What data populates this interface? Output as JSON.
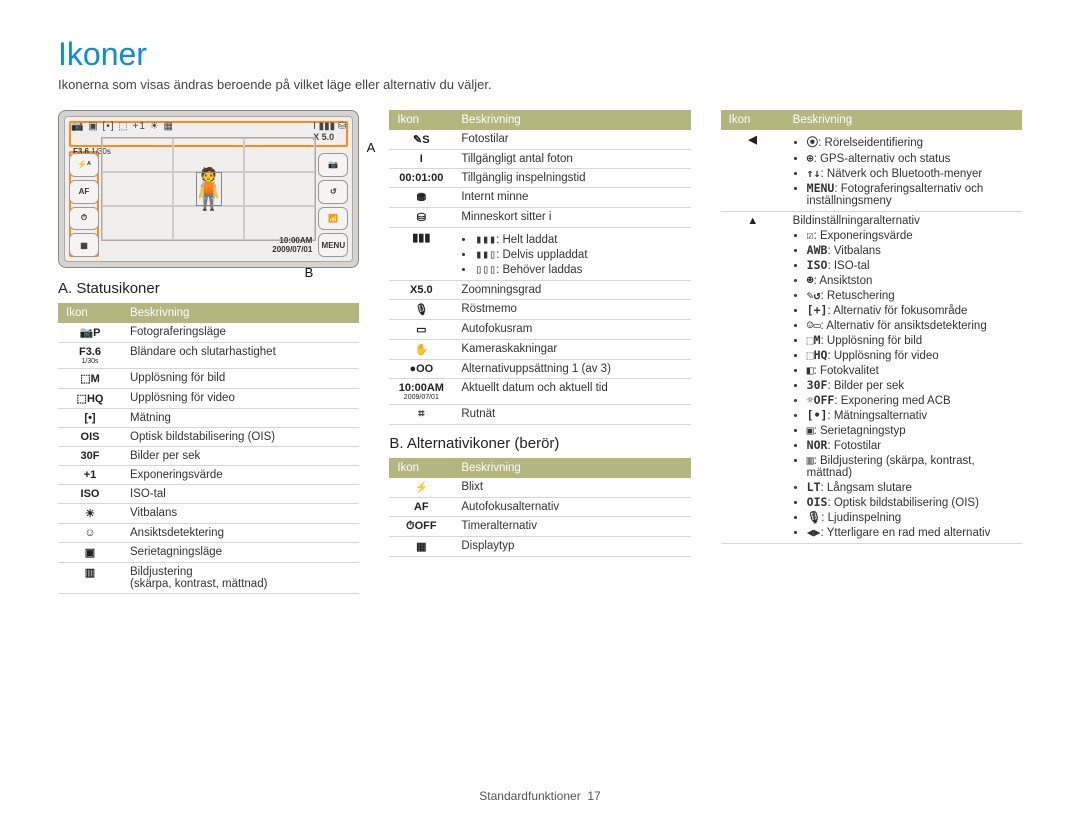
{
  "theme": {
    "accent": "#0b8ed2",
    "table_header_bg": "#b3b77f",
    "table_header_fg": "#ffffff",
    "callout": "#ff8c1a"
  },
  "title": "Ikoner",
  "intro": "Ikonerna som visas ändras beroende på vilket läge eller alternativ du väljer.",
  "preview": {
    "aperture": "F3.6",
    "shutter": "1/30s",
    "zoom": "X 5.0",
    "time": "10:00AM",
    "date": "2009/07/01",
    "label_a": "A",
    "label_b": "B",
    "left_buttons": [
      "⚡ᴬ",
      "AF",
      "⏱",
      "▦"
    ],
    "right_buttons": [
      "📷",
      "↺",
      "📶",
      "MENU"
    ]
  },
  "header": {
    "icon": "Ikon",
    "desc": "Beskrivning"
  },
  "section_a": {
    "title": "A. Statusikoner",
    "rows": [
      {
        "icon": "📷P",
        "desc": "Fotograferingsläge"
      },
      {
        "icon": "F3.6 1/30s",
        "desc": "Bländare och slutarhastighet"
      },
      {
        "icon": "⬚M",
        "desc": "Upplösning för bild"
      },
      {
        "icon": "⬚HQ",
        "desc": "Upplösning för video"
      },
      {
        "icon": "[•]",
        "desc": "Mätning"
      },
      {
        "icon": "OIS",
        "desc": "Optisk bildstabilisering (OIS)"
      },
      {
        "icon": "30F",
        "desc": "Bilder per sek"
      },
      {
        "icon": "+1",
        "desc": "Exponeringsvärde"
      },
      {
        "icon": "ISO",
        "desc": "ISO-tal"
      },
      {
        "icon": "☀",
        "desc": "Vitbalans"
      },
      {
        "icon": "☺",
        "desc": "Ansiktsdetektering"
      },
      {
        "icon": "▣",
        "desc": "Serietagningsläge"
      },
      {
        "icon": "▥",
        "desc": "Bildjustering\n(skärpa, kontrast, mättnad)"
      }
    ]
  },
  "section_a_cont": {
    "rows": [
      {
        "icon": "✎S",
        "desc": "Fotostilar"
      },
      {
        "icon": "I",
        "desc": "Tillgängligt antal foton"
      },
      {
        "icon": "00:01:00",
        "desc": "Tillgänglig inspelningstid"
      },
      {
        "icon": "⛃",
        "desc": "Internt minne"
      },
      {
        "icon": "⛁",
        "desc": "Minneskort sitter i"
      },
      {
        "icon": "▮▮▮",
        "desc_multi": [
          {
            "icon": "▮▮▮",
            "text": ": Helt laddat"
          },
          {
            "icon": "▮▮▯",
            "text": ": Delvis uppladdat"
          },
          {
            "icon": "▯▯▯",
            "text": ": Behöver laddas"
          }
        ]
      },
      {
        "icon": "X5.0",
        "desc": "Zoomningsgrad"
      },
      {
        "icon": "🎙",
        "desc": "Röstmemo"
      },
      {
        "icon": "▭",
        "desc": "Autofokusram"
      },
      {
        "icon": "✋",
        "desc": "Kameraskakningar"
      },
      {
        "icon": "●OO",
        "desc": "Alternativuppsättning 1 (av 3)"
      },
      {
        "icon": "10:00AM 2009/07/01",
        "desc": "Aktuellt datum och aktuell tid"
      },
      {
        "icon": "⌗",
        "desc": "Rutnät"
      }
    ]
  },
  "section_b": {
    "title": "B. Alternativikoner (berör)",
    "rows": [
      {
        "icon": "⚡",
        "desc": "Blixt"
      },
      {
        "icon": "AF",
        "desc": "Autofokusalternativ"
      },
      {
        "icon": "⏱OFF",
        "desc": "Timeralternativ"
      },
      {
        "icon": "▦",
        "desc": "Displaytyp"
      }
    ]
  },
  "section_b_cont": {
    "rows": [
      {
        "icon": "◀",
        "desc_multi": [
          {
            "icon": "⦿",
            "text": ": Rörelseidentifiering"
          },
          {
            "icon": "⊕",
            "text": ": GPS-alternativ och status"
          },
          {
            "icon": "↑↓",
            "text": ": Nätverk och Bluetooth-menyer"
          },
          {
            "icon": "MENU",
            "text": ": Fotograferingsalternativ och inställningsmeny"
          }
        ]
      },
      {
        "icon": "▲",
        "desc_heading": "Bildinställningaralternativ",
        "desc_multi": [
          {
            "icon": "☑",
            "text": ": Exponeringsvärde"
          },
          {
            "icon": "AWB",
            "text": ": Vitbalans"
          },
          {
            "icon": "ISO",
            "text": ": ISO-tal"
          },
          {
            "icon": "☻",
            "text": ": Ansiktston"
          },
          {
            "icon": "✎↺",
            "text": ": Retuschering"
          },
          {
            "icon": "[+]",
            "text": ": Alternativ för fokusområde"
          },
          {
            "icon": "☺▭",
            "text": ": Alternativ för ansiktsdetektering"
          },
          {
            "icon": "⬚M",
            "text": ": Upplösning för bild"
          },
          {
            "icon": "⬚HQ",
            "text": ": Upplösning för video"
          },
          {
            "icon": "◧",
            "text": ": Fotokvalitet"
          },
          {
            "icon": "30F",
            "text": ": Bilder per sek"
          },
          {
            "icon": "☼OFF",
            "text": ": Exponering med ACB"
          },
          {
            "icon": "[•]",
            "text": ": Mätningsalternativ"
          },
          {
            "icon": "▣",
            "text": ": Serietagningstyp"
          },
          {
            "icon": "NOR",
            "text": ": Fotostilar"
          },
          {
            "icon": "▥",
            "text": ": Bildjustering (skärpa, kontrast, mättnad)"
          },
          {
            "icon": "LT",
            "text": ": Långsam slutare"
          },
          {
            "icon": "OIS",
            "text": ": Optisk bildstabilisering (OIS)"
          },
          {
            "icon": "🎙",
            "text": ": Ljudinspelning"
          },
          {
            "icon": "◀▶",
            "text": ": Ytterligare en rad med alternativ"
          }
        ]
      }
    ]
  },
  "footer": {
    "section": "Standardfunktioner",
    "page": "17"
  }
}
